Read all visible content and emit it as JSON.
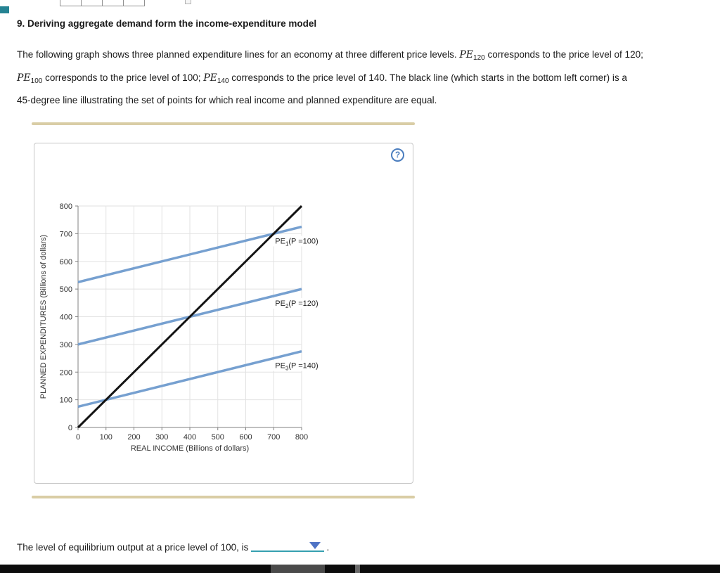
{
  "page": {
    "title": "9. Deriving aggregate demand form the income-expenditure model",
    "intro_segments": [
      {
        "style": "normal",
        "text": "The following graph shows three planned expenditure lines for an economy at three different price levels. "
      },
      {
        "style": "var",
        "text": "PE"
      },
      {
        "style": "sub",
        "text": "120"
      },
      {
        "style": "normal",
        "text": " corresponds to the price level of 120; "
      },
      {
        "style": "break"
      },
      {
        "style": "var",
        "text": "PE"
      },
      {
        "style": "sub",
        "text": "100"
      },
      {
        "style": "normal",
        "text": " corresponds to the price level of 100; "
      },
      {
        "style": "var",
        "text": "PE"
      },
      {
        "style": "sub",
        "text": "140"
      },
      {
        "style": "normal",
        "text": " corresponds to the price level of 140. The black line (which starts in the bottom left corner) is a "
      },
      {
        "style": "break"
      },
      {
        "style": "normal",
        "text": "45-degree line illustrating the set of points for which real income and planned expenditure are equal."
      }
    ],
    "help_icon_label": "?",
    "prompt": {
      "before_blank": "The level of equilibrium output at a price level of 100, is",
      "dropdown_value": "",
      "after_blank": "."
    },
    "accent_colors": {
      "divider": "#d9cda5",
      "dropdown_underline": "#35a0b0",
      "dropdown_triangle": "#4f73c5",
      "help_icon": "#4a7dbe"
    }
  },
  "chart_data": {
    "type": "line",
    "title": "",
    "xlabel": "REAL INCOME (Billions of dollars)",
    "ylabel": "PLANNED EXPENDITURES (Billions of dollars)",
    "xlim": [
      0,
      800
    ],
    "ylim": [
      0,
      800
    ],
    "xticks": [
      0,
      100,
      200,
      300,
      400,
      500,
      600,
      700,
      800
    ],
    "yticks": [
      0,
      100,
      200,
      300,
      400,
      500,
      600,
      700,
      800
    ],
    "grid": true,
    "legend_position": "inline-labels",
    "series": [
      {
        "name": "PE1",
        "x": [
          0,
          800
        ],
        "y": [
          525,
          725
        ],
        "color": "#76a0d0",
        "width": 3.5,
        "label": {
          "prefix": "PE",
          "sub": "1",
          "suffix": "(P =100)",
          "at_x": 700
        }
      },
      {
        "name": "PE2",
        "x": [
          0,
          800
        ],
        "y": [
          300,
          500
        ],
        "color": "#76a0d0",
        "width": 3.5,
        "label": {
          "prefix": "PE",
          "sub": "2",
          "suffix": "(P =120)",
          "at_x": 700
        }
      },
      {
        "name": "PE3",
        "x": [
          0,
          800
        ],
        "y": [
          75,
          275
        ],
        "color": "#76a0d0",
        "width": 3.5,
        "label": {
          "prefix": "PE",
          "sub": "3",
          "suffix": "(P =140)",
          "at_x": 700
        }
      },
      {
        "name": "45-degree line",
        "x": [
          0,
          800
        ],
        "y": [
          0,
          800
        ],
        "color": "#141414",
        "width": 3,
        "label": null
      }
    ],
    "equilibria": [
      {
        "price_level": 100,
        "output": 700
      },
      {
        "price_level": 120,
        "output": 400
      },
      {
        "price_level": 140,
        "output": 100
      }
    ]
  }
}
